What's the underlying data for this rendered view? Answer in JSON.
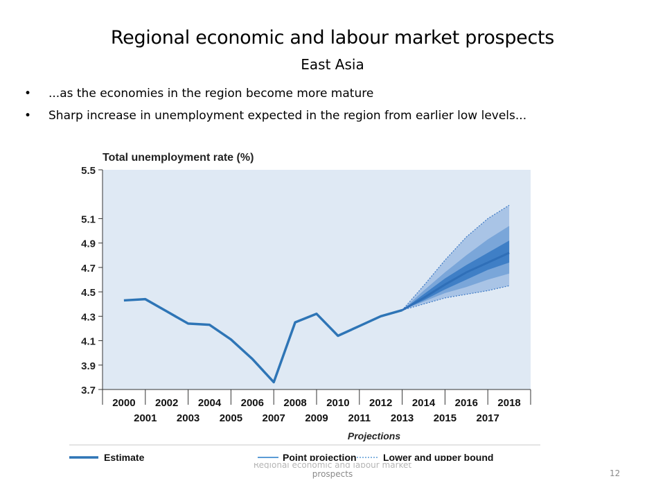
{
  "slide": {
    "title": "Regional economic and labour market prospects",
    "subtitle": "East Asia",
    "bullets": [
      "...as the economies in the region become more mature",
      "Sharp increase in unemployment expected in the region from earlier low levels..."
    ],
    "bullet_char": "•",
    "footer_faint": "Regional economic and labour market",
    "footer": "prospects",
    "page_number": "12"
  },
  "colors": {
    "plot_bg": "#dfe9f4",
    "estimate": "#2e75b6",
    "band_outer": "#a9c4e6",
    "band_mid": "#7aa6d9",
    "band_inner": "#3f7fc6",
    "point": "#2f6fb8",
    "grid_tick": "#333333"
  },
  "chart_data": {
    "type": "line",
    "title": "Total unemployment rate (%)",
    "ylim": [
      3.7,
      5.5
    ],
    "yticks": [
      3.7,
      3.9,
      4.1,
      4.3,
      4.5,
      4.7,
      4.9,
      5.1,
      5.5
    ],
    "xlim": [
      2000,
      2018
    ],
    "xticks_top": [
      "2000",
      "2002",
      "2004",
      "2006",
      "2008",
      "2010",
      "2012",
      "2014",
      "2016",
      "2018"
    ],
    "xticks_bottom": [
      "2001",
      "2003",
      "2005",
      "2007",
      "2009",
      "2011",
      "2013",
      "2015",
      "2017"
    ],
    "projections_label": "Projections",
    "grid": false,
    "series": [
      {
        "name": "Estimate",
        "x": [
          2000,
          2001,
          2002,
          2003,
          2004,
          2005,
          2006,
          2007,
          2008,
          2009,
          2010,
          2011,
          2012,
          2013
        ],
        "values": [
          4.43,
          4.44,
          4.34,
          4.24,
          4.23,
          4.11,
          3.95,
          3.76,
          4.25,
          4.32,
          4.14,
          4.22,
          4.3,
          4.35
        ]
      },
      {
        "name": "Point projection",
        "x": [
          2013,
          2014,
          2015,
          2016,
          2017,
          2018
        ],
        "values": [
          4.35,
          4.45,
          4.56,
          4.66,
          4.74,
          4.82
        ]
      },
      {
        "name": "Lower and upper bound",
        "x": [
          2013,
          2014,
          2015,
          2016,
          2017,
          2018
        ],
        "lower_outer": [
          4.35,
          4.4,
          4.45,
          4.48,
          4.51,
          4.55
        ],
        "upper_outer": [
          4.35,
          4.55,
          4.76,
          4.95,
          5.1,
          5.21
        ],
        "lower_mid": [
          4.35,
          4.42,
          4.49,
          4.54,
          4.6,
          4.65
        ],
        "upper_mid": [
          4.35,
          4.51,
          4.66,
          4.8,
          4.93,
          5.04
        ],
        "lower_inner": [
          4.35,
          4.43,
          4.52,
          4.6,
          4.68,
          4.74
        ],
        "upper_inner": [
          4.35,
          4.48,
          4.61,
          4.72,
          4.82,
          4.92
        ]
      }
    ],
    "legend": {
      "placement": "bottom",
      "items": [
        "Estimate",
        "Point projection",
        "Lower and upper bound"
      ]
    }
  }
}
